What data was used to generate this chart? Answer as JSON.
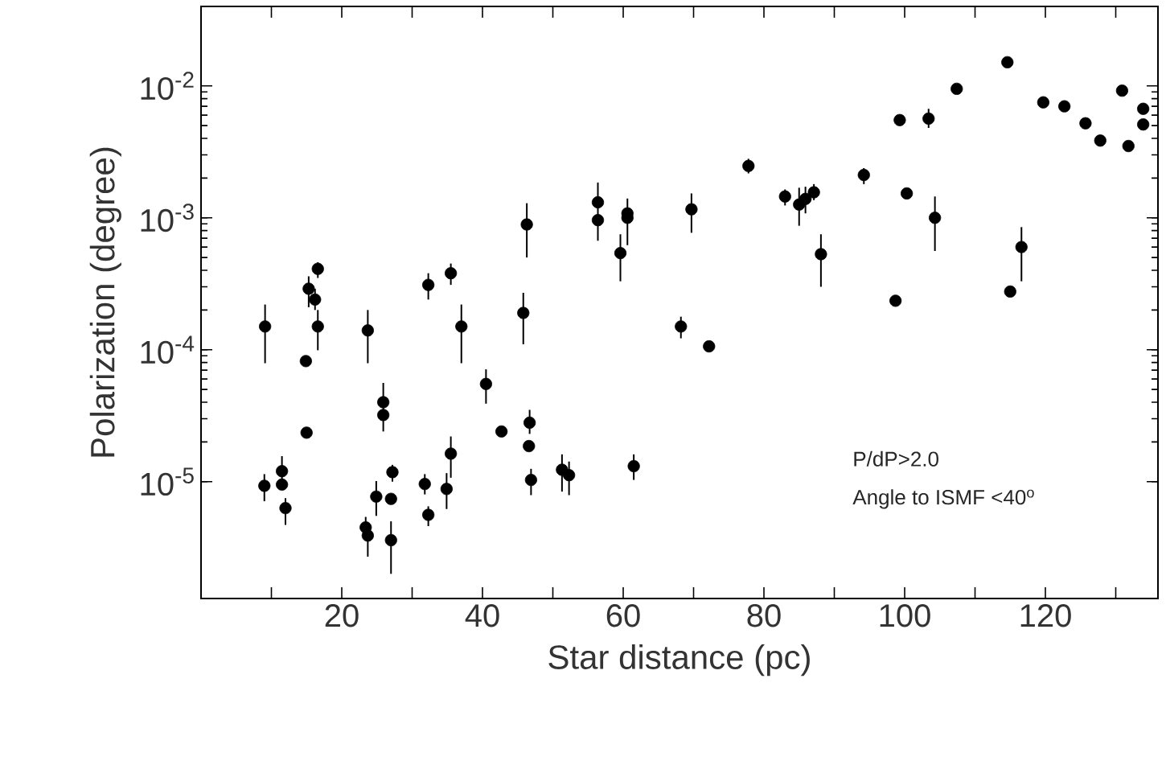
{
  "chart_data": {
    "type": "scatter",
    "xlabel": "Star distance (pc)",
    "ylabel": "Polarization (degree)",
    "log": "y",
    "marker": "circle",
    "grid": false,
    "xlim": [
      0,
      136
    ],
    "ylim": [
      1.3e-06,
      0.04
    ],
    "xticks": [
      {
        "value": 10,
        "label": null
      },
      20,
      {
        "value": 30,
        "label": null
      },
      40,
      {
        "value": 50,
        "label": null
      },
      60,
      {
        "value": 70,
        "label": null
      },
      80,
      {
        "value": 90,
        "label": null
      },
      100,
      {
        "value": 110,
        "label": null
      },
      120,
      {
        "value": 130,
        "label": null
      }
    ],
    "yticks": [
      {
        "value": 1e-05,
        "label": "10$^{-5}$"
      },
      {
        "value": 0.0001,
        "label": "10$^{-4}$"
      },
      {
        "value": 0.001,
        "label": "10$^{-3}$"
      },
      {
        "value": 0.01,
        "label": "10$^{-2}$"
      }
    ],
    "annotations": [
      "P/dP>2.0",
      "Angle to ISMF <40$^{o}$"
    ],
    "series": [
      {
        "color": "#000000",
        "x": [
          9.1,
          15.3,
          16.2,
          16.6,
          16.6,
          14.9,
          15.0,
          23.7,
          25.9,
          25.9,
          32.3,
          35.5,
          37.0,
          45.8,
          40.5,
          42.7,
          46.7,
          46.6,
          46.9,
          35.5,
          31.8,
          34.9,
          32.3,
          9.0,
          11.5,
          11.5,
          12.0,
          24.9,
          27.2,
          27.0,
          27.0,
          23.4,
          23.7,
          46.3,
          56.4,
          56.4,
          59.6,
          60.6,
          60.6,
          69.7,
          77.8,
          83.0,
          85.0,
          85.9,
          87.1,
          88.1,
          94.2,
          68.2,
          72.2,
          51.3,
          52.3,
          61.5,
          99.3,
          103.4,
          107.4,
          114.6,
          119.7,
          122.7,
          125.7,
          127.8,
          130.9,
          131.8,
          133.9,
          133.9,
          100.3,
          104.3,
          98.7,
          115.0,
          116.6
        ],
        "values": [
          0.00015,
          0.00029,
          0.00024,
          0.00041,
          0.00015,
          8.2e-05,
          2.35e-05,
          0.00014,
          4e-05,
          3.2e-05,
          0.00031,
          0.00038,
          0.00015,
          0.00019,
          5.5e-05,
          2.4e-05,
          2.8e-05,
          1.86e-05,
          1.03e-05,
          1.63e-05,
          9.6e-06,
          8.8e-06,
          5.6e-06,
          9.3e-06,
          1.2e-05,
          9.5e-06,
          6.3e-06,
          7.7e-06,
          1.18e-05,
          7.4e-06,
          3.6e-06,
          4.5e-06,
          3.9e-06,
          0.00089,
          0.00131,
          0.00096,
          0.00054,
          0.00108,
          0.001,
          0.00116,
          0.00247,
          0.00145,
          0.00126,
          0.00139,
          0.00156,
          0.00053,
          0.00211,
          0.00015,
          0.000106,
          1.23e-05,
          1.12e-05,
          1.31e-05,
          0.0055,
          0.00565,
          0.0095,
          0.0151,
          0.0075,
          0.007,
          0.0052,
          0.00385,
          0.0092,
          0.0035,
          0.0067,
          0.0051,
          0.00153,
          0.001,
          0.000235,
          0.000276,
          0.0006
        ],
        "errors": [
          [
            7.9e-05,
            0.00022
          ],
          [
            0.00021,
            0.00036
          ],
          [
            0.0002,
            0.00029
          ],
          [
            0.00035,
            0.00046
          ],
          [
            9.9e-05,
            0.0002
          ],
          null,
          null,
          [
            7.9e-05,
            0.0002
          ],
          [
            2.4e-05,
            5.6e-05
          ],
          null,
          [
            0.00024,
            0.00038
          ],
          [
            0.00031,
            0.00045
          ],
          [
            7.9e-05,
            0.00022
          ],
          [
            0.00011,
            0.00027
          ],
          [
            3.9e-05,
            7.1e-05
          ],
          null,
          [
            2.3e-05,
            3.5e-05
          ],
          null,
          [
            7.9e-06,
            1.25e-05
          ],
          [
            1.07e-05,
            2.2e-05
          ],
          [
            8e-06,
            1.14e-05
          ],
          [
            6.2e-06,
            1.16e-05
          ],
          [
            4.6e-06,
            6.5e-06
          ],
          [
            7.1e-06,
            1.14e-05
          ],
          [
            9.5e-06,
            1.56e-05
          ],
          null,
          [
            4.7e-06,
            7.5e-06
          ],
          [
            5.5e-06,
            1.01e-05
          ],
          [
            1e-05,
            1.34e-05
          ],
          null,
          [
            2e-06,
            5e-06
          ],
          [
            3.9e-06,
            5.4e-06
          ],
          [
            2.7e-06,
            4.7e-06
          ],
          [
            0.0005,
            0.00129
          ],
          [
            0.00067,
            0.00185
          ],
          null,
          [
            0.00033,
            0.00075
          ],
          [
            0.00062,
            0.0014
          ],
          null,
          [
            0.00077,
            0.00153
          ],
          [
            0.00217,
            0.0028
          ],
          [
            0.00124,
            0.00164
          ],
          [
            0.00087,
            0.00169
          ],
          [
            0.00108,
            0.00172
          ],
          [
            0.00136,
            0.0018
          ],
          [
            0.0003,
            0.00075
          ],
          [
            0.0018,
            0.00238
          ],
          [
            0.000122,
            0.000178
          ],
          null,
          [
            8.4e-06,
            1.61e-05
          ],
          [
            7.9e-06,
            1.42e-05
          ],
          [
            1.03e-05,
            1.61e-05
          ],
          null,
          [
            0.0048,
            0.0067
          ],
          null,
          null,
          null,
          null,
          null,
          null,
          null,
          null,
          null,
          null,
          null,
          [
            0.00056,
            0.00145
          ],
          null,
          null,
          [
            0.00033,
            0.00085
          ]
        ]
      }
    ]
  }
}
